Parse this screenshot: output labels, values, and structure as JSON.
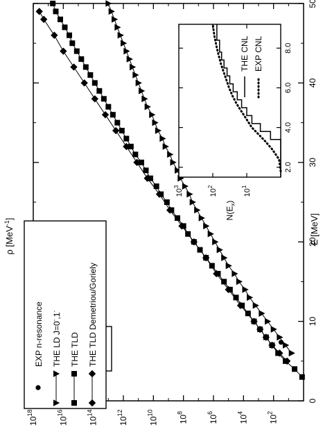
{
  "chart_data": [
    {
      "type": "line",
      "note_orientation": "rotated 90 degrees counter-clockwise in the image",
      "xlabel": "E [MeV]",
      "ylabel_base": "ρ [MeV",
      "ylabel_exp": "-1",
      "ylabel_tail": "]",
      "xlim": [
        0,
        50
      ],
      "xticks": [
        "0",
        "10",
        "20",
        "30",
        "40",
        "50"
      ],
      "ylim_log10": [
        0,
        18
      ],
      "yticks": [
        {
          "base": "10",
          "exp": "2"
        },
        {
          "base": "10",
          "exp": "4"
        },
        {
          "base": "10",
          "exp": "6"
        },
        {
          "base": "10",
          "exp": "8"
        },
        {
          "base": "10",
          "exp": "10"
        },
        {
          "base": "10",
          "exp": "12"
        },
        {
          "base": "10",
          "exp": "14"
        },
        {
          "base": "10",
          "exp": "16"
        },
        {
          "base": "10",
          "exp": "18"
        }
      ],
      "annotation": {
        "sup": "208",
        "main": "Pb"
      },
      "legend": {
        "placement": "top-left",
        "entries": [
          {
            "label": "EXP n-resonance",
            "marker": "circle",
            "line": false
          },
          {
            "label": "THE LD J=0",
            "marker": "triangle",
            "line": true,
            "label_sup": "-",
            "label_mid": ",1",
            "label_sup2": "-"
          },
          {
            "label": "THE TLD",
            "marker": "square",
            "line": true
          },
          {
            "label": "THE TLD Demetriou/Goriely",
            "marker": "diamond",
            "line": true
          }
        ]
      },
      "series": [
        {
          "name": "EXP n-resonance",
          "marker": "circle",
          "points": [
            [
              7.37,
              1.5
            ]
          ]
        },
        {
          "name": "THE LD J=0-,1-",
          "marker": "triangle",
          "points": [
            [
              6,
              0.8
            ],
            [
              7,
              1.2
            ],
            [
              8,
              1.6
            ],
            [
              9,
              2.0
            ],
            [
              10,
              2.4
            ],
            [
              11,
              2.8
            ],
            [
              12,
              3.2
            ],
            [
              13,
              3.6
            ],
            [
              14,
              3.9
            ],
            [
              15,
              4.3
            ],
            [
              16,
              4.6
            ],
            [
              17,
              5.0
            ],
            [
              18,
              5.3
            ],
            [
              19,
              5.6
            ],
            [
              20,
              5.9
            ],
            [
              21,
              6.2
            ],
            [
              22,
              6.5
            ],
            [
              23,
              6.8
            ],
            [
              24,
              7.1
            ],
            [
              25,
              7.4
            ],
            [
              26,
              7.6
            ],
            [
              27,
              7.9
            ],
            [
              28,
              8.2
            ],
            [
              29,
              8.4
            ],
            [
              30,
              8.7
            ],
            [
              31,
              8.9
            ],
            [
              32,
              9.2
            ],
            [
              33,
              9.4
            ],
            [
              34,
              9.7
            ],
            [
              35,
              9.9
            ],
            [
              36,
              10.1
            ],
            [
              37,
              10.4
            ],
            [
              38,
              10.6
            ],
            [
              39,
              10.8
            ],
            [
              40,
              11.0
            ],
            [
              41,
              11.2
            ],
            [
              42,
              11.4
            ],
            [
              43,
              11.6
            ],
            [
              44,
              11.8
            ],
            [
              45,
              12.0
            ],
            [
              46,
              12.2
            ],
            [
              47,
              12.4
            ],
            [
              48,
              12.6
            ],
            [
              49,
              12.8
            ],
            [
              50,
              13.0
            ]
          ]
        },
        {
          "name": "THE TLD",
          "marker": "square",
          "points": [
            [
              3,
              0.1
            ],
            [
              4,
              0.6
            ],
            [
              5,
              1.2
            ],
            [
              6,
              1.7
            ],
            [
              7,
              2.1
            ],
            [
              8,
              2.5
            ],
            [
              9,
              2.9
            ],
            [
              10,
              3.3
            ],
            [
              11,
              3.7
            ],
            [
              12,
              4.1
            ],
            [
              13,
              4.5
            ],
            [
              14,
              4.9
            ],
            [
              15,
              5.3
            ],
            [
              16,
              5.7
            ],
            [
              17,
              6.1
            ],
            [
              18,
              6.5
            ],
            [
              19,
              6.9
            ],
            [
              20,
              7.3
            ],
            [
              21,
              7.7
            ],
            [
              22,
              8.0
            ],
            [
              23,
              8.4
            ],
            [
              24,
              8.8
            ],
            [
              25,
              9.1
            ],
            [
              26,
              9.5
            ],
            [
              27,
              9.8
            ],
            [
              28,
              10.2
            ],
            [
              29,
              10.5
            ],
            [
              30,
              10.8
            ],
            [
              31,
              11.2
            ],
            [
              32,
              11.5
            ],
            [
              33,
              11.8
            ],
            [
              34,
              12.1
            ],
            [
              35,
              12.4
            ],
            [
              36,
              12.7
            ],
            [
              37,
              13.0
            ],
            [
              38,
              13.3
            ],
            [
              39,
              13.6
            ],
            [
              40,
              13.9
            ],
            [
              41,
              14.2
            ],
            [
              42,
              14.5
            ],
            [
              43,
              14.8
            ],
            [
              44,
              15.1
            ],
            [
              45,
              15.4
            ],
            [
              46,
              15.6
            ],
            [
              47,
              15.9
            ],
            [
              48,
              16.2
            ],
            [
              49,
              16.5
            ],
            [
              50,
              16.7
            ]
          ]
        },
        {
          "name": "THE TLD Demetriou/Goriely",
          "marker": "diamond",
          "points": [
            [
              5,
              1.1
            ],
            [
              6,
              1.6
            ],
            [
              7,
              2.1
            ],
            [
              8,
              2.5
            ],
            [
              9,
              2.9
            ],
            [
              10,
              3.3
            ],
            [
              12,
              4.2
            ],
            [
              14,
              5.0
            ],
            [
              16,
              5.8
            ],
            [
              18,
              6.5
            ],
            [
              20,
              7.3
            ],
            [
              22,
              8.1
            ],
            [
              24,
              8.9
            ],
            [
              26,
              9.6
            ],
            [
              28,
              10.4
            ],
            [
              30,
              11.1
            ],
            [
              32,
              11.8
            ],
            [
              34,
              12.5
            ],
            [
              36,
              13.2
            ],
            [
              38,
              13.9
            ],
            [
              40,
              14.6
            ],
            [
              42,
              15.3
            ],
            [
              44,
              16.0
            ],
            [
              46,
              16.6
            ],
            [
              48,
              17.3
            ],
            [
              49,
              17.6
            ]
          ]
        }
      ]
    },
    {
      "type": "line",
      "placement": "inset, upper-right of main plot",
      "ylabel_base": "N(E",
      "ylabel_sub": "x",
      "ylabel_tail": ")",
      "xlim": [
        1.5,
        9.2
      ],
      "xticks": [
        "2.0",
        "4.0",
        "6.0",
        "8.0"
      ],
      "ylim_log10": [
        0,
        3
      ],
      "yticks": [
        {
          "base": "10",
          "exp": "1"
        },
        {
          "base": "10",
          "exp": "2"
        },
        {
          "base": "10",
          "exp": "3"
        }
      ],
      "legend": {
        "placement": "top-right",
        "entries": [
          {
            "label": "EXP CNL",
            "style": "dotted"
          },
          {
            "label": "THE CNL",
            "style": "solid"
          }
        ]
      },
      "series": [
        {
          "name": "EXP CNL",
          "style": "dotted",
          "points": [
            [
              1.8,
              0.0
            ],
            [
              2.4,
              0.05
            ],
            [
              2.9,
              0.25
            ],
            [
              3.3,
              0.45
            ],
            [
              3.6,
              0.62
            ],
            [
              4.0,
              0.85
            ],
            [
              4.4,
              1.0
            ],
            [
              4.8,
              1.15
            ],
            [
              5.2,
              1.3
            ],
            [
              5.6,
              1.42
            ],
            [
              6.0,
              1.52
            ],
            [
              6.4,
              1.6
            ],
            [
              6.8,
              1.68
            ],
            [
              7.2,
              1.76
            ],
            [
              7.6,
              1.82
            ],
            [
              8.0,
              1.88
            ],
            [
              8.6,
              1.95
            ],
            [
              9.2,
              2.0
            ]
          ]
        },
        {
          "name": "THE CNL",
          "style": "step",
          "points": [
            [
              1.5,
              0.0
            ],
            [
              3.4,
              0.0
            ],
            [
              3.4,
              0.3
            ],
            [
              3.8,
              0.3
            ],
            [
              3.8,
              0.6
            ],
            [
              4.2,
              0.6
            ],
            [
              4.2,
              0.85
            ],
            [
              4.6,
              0.85
            ],
            [
              4.6,
              1.0
            ],
            [
              5.0,
              1.0
            ],
            [
              5.0,
              1.15
            ],
            [
              5.4,
              1.15
            ],
            [
              5.4,
              1.28
            ],
            [
              5.8,
              1.28
            ],
            [
              5.8,
              1.4
            ],
            [
              6.2,
              1.4
            ],
            [
              6.2,
              1.5
            ],
            [
              6.6,
              1.5
            ],
            [
              6.6,
              1.58
            ],
            [
              7.0,
              1.58
            ],
            [
              7.0,
              1.67
            ],
            [
              7.4,
              1.67
            ],
            [
              7.4,
              1.74
            ],
            [
              7.8,
              1.74
            ],
            [
              7.8,
              1.8
            ],
            [
              8.4,
              1.8
            ],
            [
              8.4,
              1.88
            ],
            [
              9.2,
              1.88
            ]
          ]
        }
      ]
    }
  ]
}
